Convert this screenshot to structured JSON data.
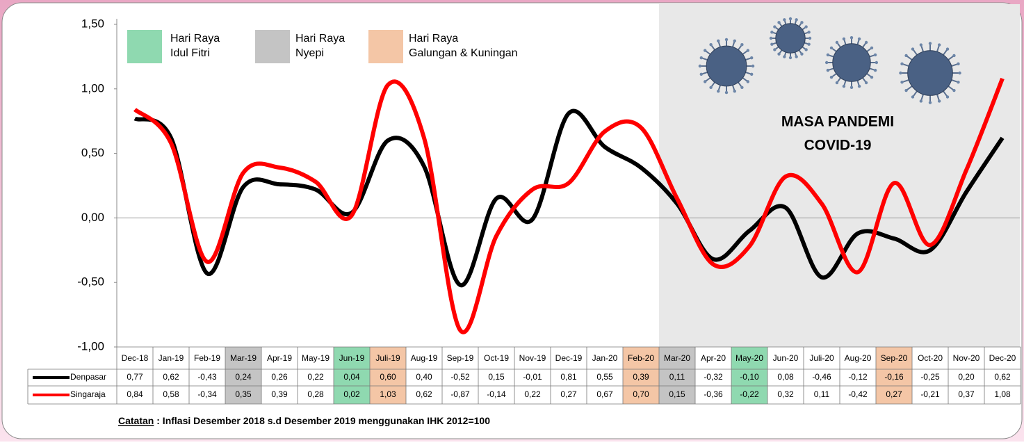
{
  "chart_data": {
    "type": "line",
    "categories": [
      "Dec-18",
      "Jan-19",
      "Feb-19",
      "Mar-19",
      "Apr-19",
      "May-19",
      "Jun-19",
      "Juli-19",
      "Aug-19",
      "Sep-19",
      "Oct-19",
      "Nov-19",
      "Dec-19",
      "Jan-20",
      "Feb-20",
      "Mar-20",
      "Apr-20",
      "May-20",
      "Jun-20",
      "Juli-20",
      "Aug-20",
      "Sep-20",
      "Oct-20",
      "Nov-20",
      "Dec-20"
    ],
    "series": [
      {
        "name": "Denpasar",
        "color": "#000000",
        "values": [
          0.77,
          0.62,
          -0.43,
          0.24,
          0.26,
          0.22,
          0.04,
          0.6,
          0.4,
          -0.52,
          0.15,
          -0.01,
          0.81,
          0.55,
          0.39,
          0.11,
          -0.32,
          -0.1,
          0.08,
          -0.46,
          -0.12,
          -0.16,
          -0.25,
          0.2,
          0.62
        ],
        "value_labels": [
          "0,77",
          "0,62",
          "-0,43",
          "0,24",
          "0,26",
          "0,22",
          "0,04",
          "0,60",
          "0,40",
          "-0,52",
          "0,15",
          "-0,01",
          "0,81",
          "0,55",
          "0,39",
          "0,11",
          "-0,32",
          "-0,10",
          "0,08",
          "-0,46",
          "-0,12",
          "-0,16",
          "-0,25",
          "0,20",
          "0,62"
        ]
      },
      {
        "name": "Singaraja",
        "color": "#ff0000",
        "values": [
          0.84,
          0.58,
          -0.34,
          0.35,
          0.39,
          0.28,
          0.02,
          1.03,
          0.62,
          -0.87,
          -0.14,
          0.22,
          0.27,
          0.67,
          0.7,
          0.15,
          -0.36,
          -0.22,
          0.32,
          0.11,
          -0.42,
          0.27,
          -0.21,
          0.37,
          1.08
        ],
        "value_labels": [
          "0,84",
          "0,58",
          "-0,34",
          "0,35",
          "0,39",
          "0,28",
          "0,02",
          "1,03",
          "0,62",
          "-0,87",
          "-0,14",
          "0,22",
          "0,27",
          "0,67",
          "0,70",
          "0,15",
          "-0,36",
          "-0,22",
          "0,32",
          "0,11",
          "-0,42",
          "0,27",
          "-0,21",
          "0,37",
          "1,08"
        ]
      }
    ],
    "ylim": [
      -1.0,
      1.5
    ],
    "yticks": [
      {
        "value": -1.0,
        "label": "-1,00"
      },
      {
        "value": -0.5,
        "label": "-0,50"
      },
      {
        "value": 0,
        "label": "0,00"
      },
      {
        "value": 0.5,
        "label": "0,50"
      },
      {
        "value": 1.0,
        "label": "1,00"
      },
      {
        "value": 1.5,
        "label": "1,50"
      }
    ],
    "grid": false,
    "highlights": [
      {
        "label": [
          "Hari Raya",
          "Idul Fitri"
        ],
        "color": "#8fd9b0",
        "categories": [
          "Jun-19",
          "May-20"
        ]
      },
      {
        "label": [
          "Hari Raya",
          "Nyepi"
        ],
        "color": "#c4c4c4",
        "categories": [
          "Mar-19",
          "Mar-20"
        ]
      },
      {
        "label": [
          "Hari Raya",
          "Galungan & Kuningan"
        ],
        "color": "#f4c6a6",
        "categories": [
          "Juli-19",
          "Feb-20",
          "Sep-20"
        ]
      }
    ],
    "shaded_region": {
      "from": "Mar-20",
      "color": "#e8e8e8",
      "text": [
        "MASA PANDEMI",
        "COVID-19"
      ]
    },
    "note": {
      "label": "Catatan",
      "text": " : Inflasi Desember 2018 s.d Desember 2019 menggunakan IHK 2012=100"
    }
  }
}
